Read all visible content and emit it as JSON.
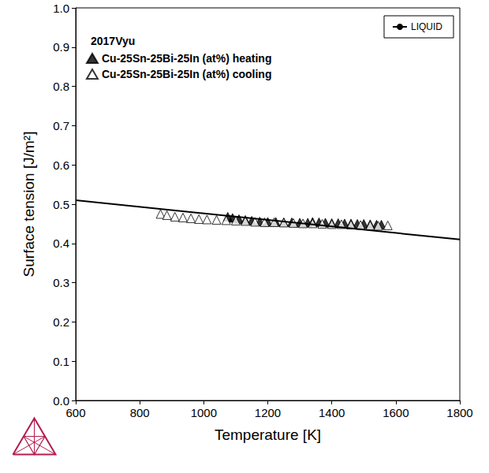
{
  "chart_data": {
    "type": "scatter",
    "annotation": "2017Vyu",
    "x_label": "Temperature [K]",
    "y_label": "Surface tension [J/m²]",
    "xlim": [
      600,
      1800
    ],
    "xticks": [
      600,
      800,
      1000,
      1200,
      1400,
      1600,
      1800
    ],
    "ylim": [
      0,
      1
    ],
    "yticks": [
      {
        "value": 0,
        "label": "0.0"
      },
      0.1,
      0.2,
      0.3,
      0.4,
      0.5,
      0.6,
      0.7,
      0.8,
      0.9,
      {
        "value": 1,
        "label": "1.0"
      }
    ],
    "grid": false,
    "legend": "upper right",
    "series": [
      {
        "name": "Cu-25Sn-25Bi-25In (at%) heating",
        "type": "scatter",
        "marker": "triangle",
        "color": "#000000",
        "x": [
          1075,
          1090,
          1110,
          1130,
          1150,
          1175,
          1200,
          1225,
          1250,
          1275,
          1300,
          1325,
          1340,
          1360,
          1380,
          1400,
          1420,
          1440,
          1460,
          1480,
          1500,
          1520,
          1540,
          1555
        ],
        "values": [
          0.468,
          0.465,
          0.462,
          0.46,
          0.458,
          0.456,
          0.455,
          0.455,
          0.454,
          0.454,
          0.453,
          0.453,
          0.455,
          0.454,
          0.453,
          0.452,
          0.452,
          0.451,
          0.451,
          0.45,
          0.45,
          0.449,
          0.448,
          0.448
        ]
      },
      {
        "name": "Cu-25Sn-25Bi-25In (at%) cooling",
        "type": "scatter",
        "marker": "triangle-open",
        "color": "#000000",
        "x": [
          865,
          885,
          910,
          935,
          960,
          985,
          1010,
          1040,
          1070,
          1100,
          1130,
          1160,
          1190,
          1220,
          1250,
          1280,
          1310,
          1340,
          1370,
          1400,
          1430,
          1460,
          1490,
          1520,
          1545,
          1575
        ],
        "values": [
          0.475,
          0.472,
          0.468,
          0.466,
          0.464,
          0.462,
          0.461,
          0.46,
          0.459,
          0.458,
          0.457,
          0.455,
          0.454,
          0.454,
          0.453,
          0.452,
          0.451,
          0.451,
          0.45,
          0.449,
          0.449,
          0.448,
          0.447,
          0.446,
          0.445,
          0.446
        ]
      },
      {
        "name": "LIQUID",
        "type": "line",
        "line_style": "solid",
        "color": "#000000",
        "x": [
          600,
          1800
        ],
        "values": [
          0.51,
          0.41
        ]
      }
    ]
  }
}
